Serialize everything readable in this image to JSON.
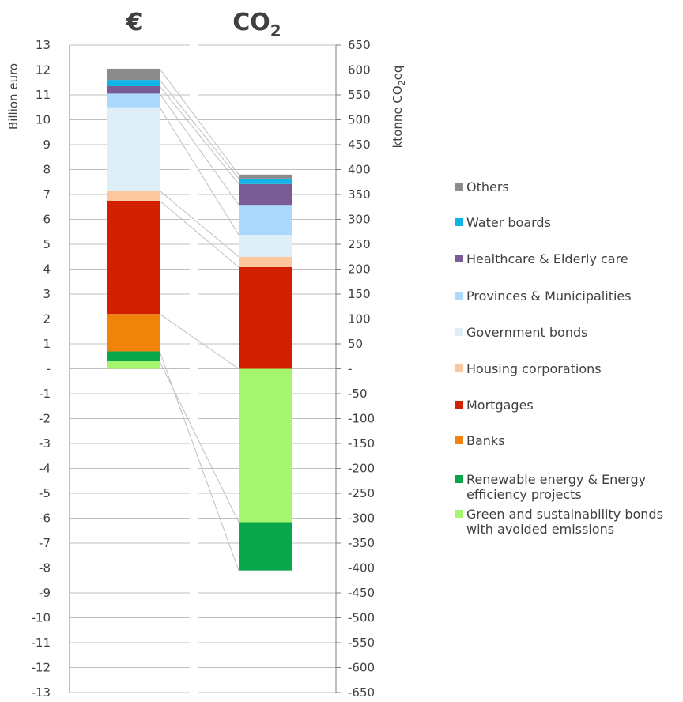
{
  "chart_data": {
    "type": "bar",
    "stacked": true,
    "categories": [
      "€",
      "CO2"
    ],
    "category_labels": [
      {
        "main": "€",
        "sub": ""
      },
      {
        "main": "CO",
        "sub": "2"
      }
    ],
    "left_axis": {
      "label": "Billion euro",
      "range": [
        -13,
        13
      ],
      "ticks": [
        "13",
        "12",
        "11",
        "10",
        "9",
        "8",
        "7",
        "6",
        "5",
        "4",
        "3",
        "2",
        "1",
        "-",
        "-1",
        "-2",
        "-3",
        "-4",
        "-5",
        "-6",
        "-7",
        "-8",
        "-9",
        "-10",
        "-11",
        "-12",
        "-13"
      ]
    },
    "right_axis": {
      "label_main": "ktonne CO",
      "label_sub": "2",
      "label_tail": "eq",
      "range": [
        -650,
        650
      ],
      "ticks": [
        "650",
        "600",
        "550",
        "500",
        "450",
        "400",
        "350",
        "300",
        "250",
        "200",
        "150",
        "100",
        "50",
        "-",
        "-50",
        "-100",
        "-150",
        "-200",
        "-250",
        "-300",
        "-350",
        "-400",
        "-450",
        "-500",
        "-550",
        "-600",
        "-650"
      ]
    },
    "grid": true,
    "legend_position": "right",
    "series": [
      {
        "name": "Green and sustainability bonds with avoided emissions",
        "legend_lines": [
          "Green and sustainability bonds",
          "with avoided emissions"
        ],
        "color": "#a6f56e",
        "euro": 0.3,
        "co2": -308
      },
      {
        "name": "Renewable energy & Energy efficiency projects",
        "legend_lines": [
          "Renewable energy & Energy",
          "efficiency projects"
        ],
        "color": "#0aa64c",
        "euro": 0.4,
        "co2": -97
      },
      {
        "name": "Banks",
        "legend_lines": [
          "Banks"
        ],
        "color": "#f0830a",
        "euro": 1.5,
        "co2": 0
      },
      {
        "name": "Mortgages",
        "legend_lines": [
          "Mortgages"
        ],
        "color": "#d11f00",
        "euro": 4.55,
        "co2": 204
      },
      {
        "name": "Housing corporations",
        "legend_lines": [
          "Housing corporations"
        ],
        "color": "#fcc79e",
        "euro": 0.4,
        "co2": 21
      },
      {
        "name": "Government bonds",
        "legend_lines": [
          "Government bonds"
        ],
        "color": "#deeff8",
        "euro": 3.35,
        "co2": 44
      },
      {
        "name": "Provinces & Municipalities",
        "legend_lines": [
          "Provinces & Municipalities"
        ],
        "color": "#abd9fb",
        "euro": 0.55,
        "co2": 60
      },
      {
        "name": "Healthcare & Elderly care",
        "legend_lines": [
          "Healthcare & Elderly care"
        ],
        "color": "#7a5c94",
        "euro": 0.3,
        "co2": 42
      },
      {
        "name": "Water boards",
        "legend_lines": [
          "Water boards"
        ],
        "color": "#10b5e6",
        "euro": 0.25,
        "co2": 11
      },
      {
        "name": "Others",
        "legend_lines": [
          "Others"
        ],
        "color": "#8c8c8c",
        "euro": 0.45,
        "co2": 8
      }
    ]
  }
}
